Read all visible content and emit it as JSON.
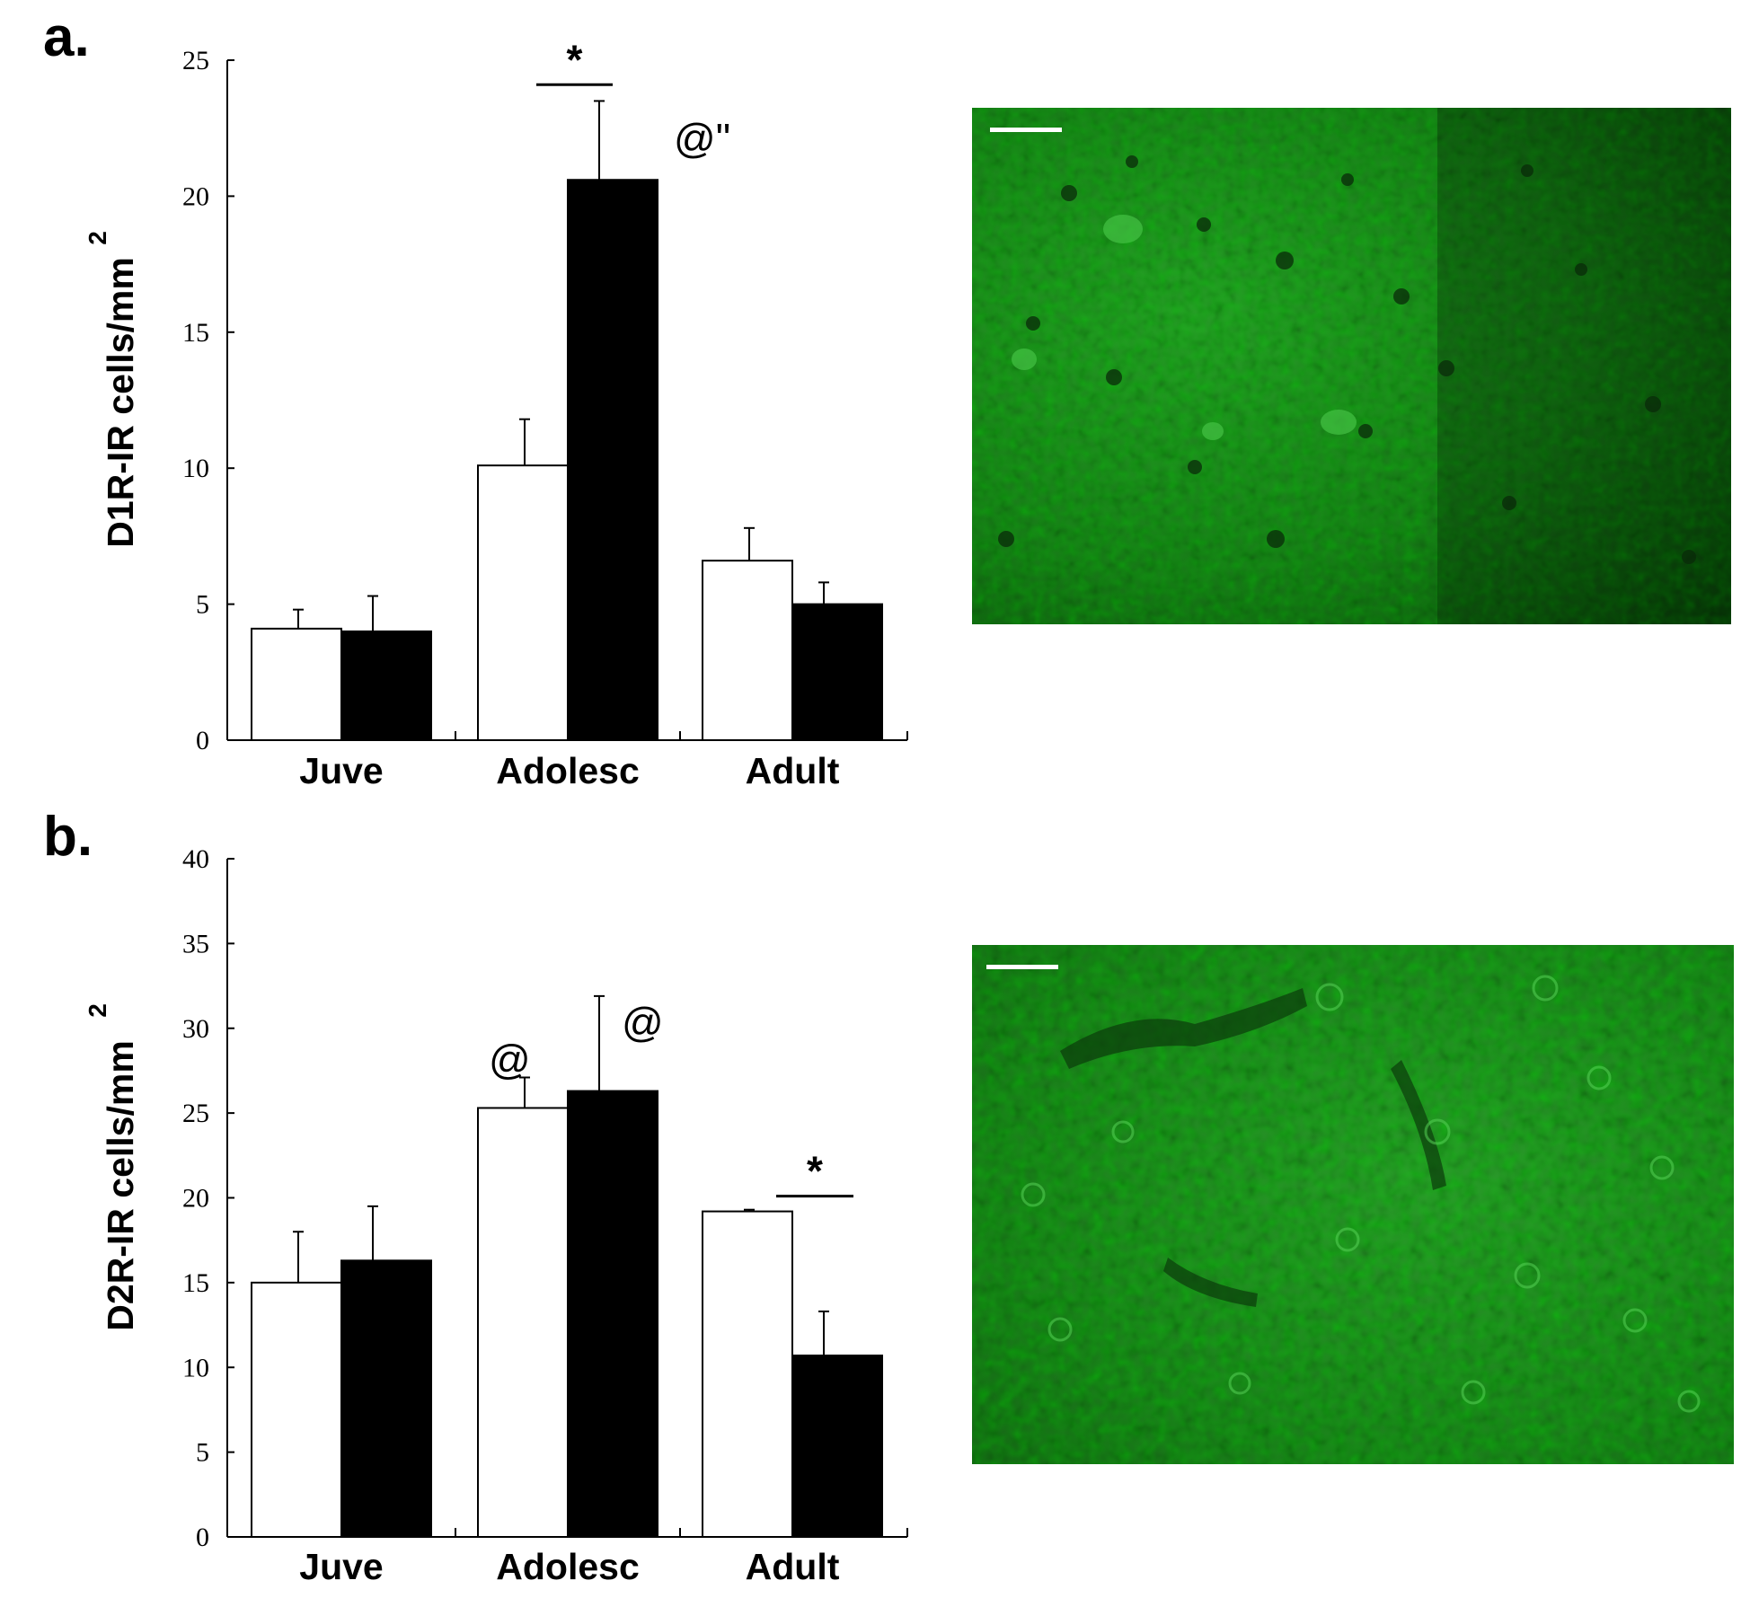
{
  "chart_data": [
    {
      "type": "bar",
      "panel": "a.",
      "ylabel": "D1R-IR cells/mm",
      "ylabel_superscript": "2",
      "ylim": [
        0,
        25
      ],
      "yticks": [
        0,
        5,
        10,
        15,
        20,
        25
      ],
      "categories": [
        "Juve",
        "Adolesc",
        "Adult"
      ],
      "series": [
        {
          "color": "#ffffff",
          "values": [
            4.1,
            10.1,
            6.6
          ],
          "errors": [
            0.7,
            1.7,
            1.2
          ]
        },
        {
          "color": "#000000",
          "values": [
            4.0,
            20.6,
            5.0
          ],
          "errors": [
            1.3,
            2.9,
            0.8
          ]
        }
      ],
      "annotations": [
        {
          "text": "*",
          "category": "Adolesc",
          "kind": "bracket",
          "y": 24.1
        },
        {
          "text": "@\"",
          "category": "Adolesc",
          "series": 1,
          "y": 21.6
        }
      ],
      "grid": false
    },
    {
      "type": "bar",
      "panel": "b.",
      "ylabel": "D2R-IR cells/mm",
      "ylabel_superscript": "2",
      "ylim": [
        0,
        40
      ],
      "yticks": [
        0,
        5,
        10,
        15,
        20,
        25,
        30,
        35,
        40
      ],
      "categories": [
        "Juve",
        "Adolesc",
        "Adult"
      ],
      "series": [
        {
          "color": "#ffffff",
          "values": [
            15.0,
            25.3,
            19.2
          ],
          "errors": [
            3.0,
            1.8,
            0.1
          ]
        },
        {
          "color": "#000000",
          "values": [
            16.3,
            26.3,
            10.7
          ],
          "errors": [
            3.2,
            5.6,
            2.6
          ]
        }
      ],
      "annotations": [
        {
          "text": "@",
          "category": "Adolesc",
          "series": 0,
          "y": 27.3
        },
        {
          "text": "@",
          "category": "Adolesc",
          "series": 1,
          "y": 29.5
        },
        {
          "text": "*",
          "category": "Adult",
          "kind": "bracket",
          "y": 20.1
        }
      ],
      "grid": false
    }
  ],
  "micrographs": [
    {
      "name": "micrograph-d1r",
      "style": "green-fluorescence",
      "scale_bar": true
    },
    {
      "name": "micrograph-d2r",
      "style": "green-fluorescence",
      "scale_bar": true
    }
  ]
}
